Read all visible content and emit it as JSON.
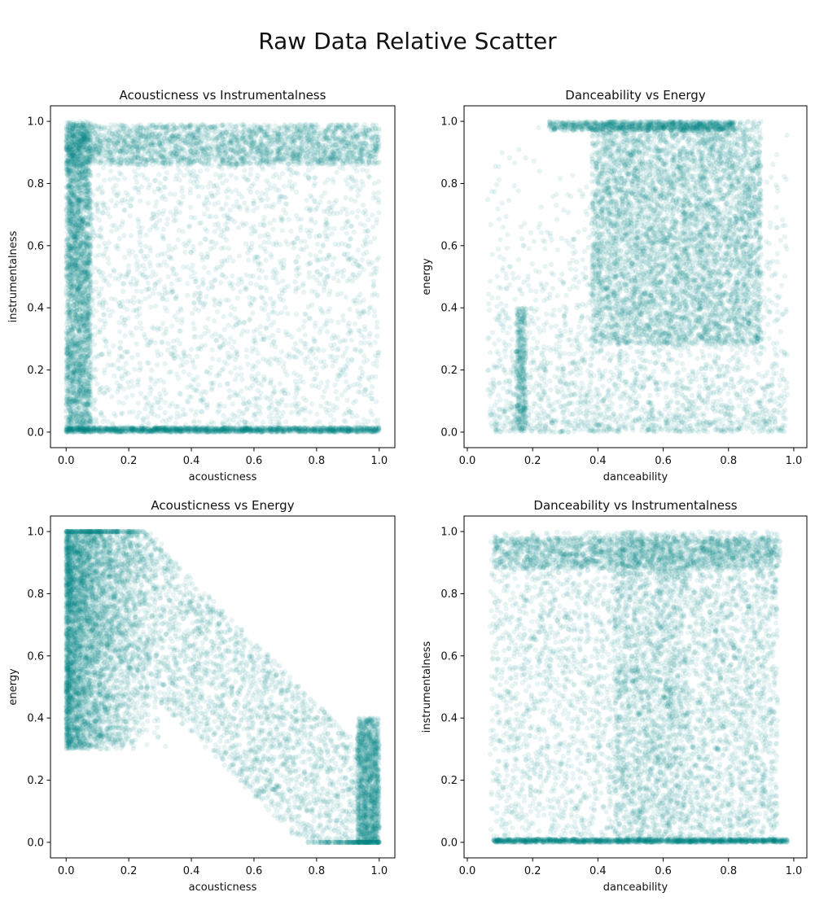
{
  "figure": {
    "title": "Raw Data Relative Scatter"
  },
  "chart_data": [
    {
      "type": "scatter",
      "title": "Acousticness vs Instrumentalness",
      "xlabel": "acousticness",
      "ylabel": "instrumentalness",
      "xlim": [
        -0.05,
        1.05
      ],
      "ylim": [
        -0.05,
        1.05
      ],
      "xticks": [
        "0.0",
        "0.2",
        "0.4",
        "0.6",
        "0.8",
        "1.0"
      ],
      "yticks": [
        "0.0",
        "0.2",
        "0.4",
        "0.6",
        "0.8",
        "1.0"
      ],
      "grid": false,
      "color": "#008080",
      "marker_alpha": 0.03,
      "density_regions": [
        {
          "shape": "band",
          "x": [
            0.0,
            1.0
          ],
          "y": [
            0.85,
            1.0
          ],
          "density": "very high"
        },
        {
          "shape": "band",
          "x": [
            0.0,
            0.07
          ],
          "y": [
            0.0,
            1.0
          ],
          "density": "very high"
        },
        {
          "shape": "band",
          "x": [
            0.0,
            1.0
          ],
          "y": [
            0.0,
            0.02
          ],
          "density": "very high"
        },
        {
          "shape": "region",
          "x": [
            0.1,
            1.0
          ],
          "y": [
            0.05,
            0.8
          ],
          "density": "sparse"
        }
      ]
    },
    {
      "type": "scatter",
      "title": "Danceability vs Energy",
      "xlabel": "danceability",
      "ylabel": "energy",
      "xlim": [
        -0.01,
        1.04
      ],
      "ylim": [
        -0.05,
        1.05
      ],
      "xticks": [
        "0.0",
        "0.2",
        "0.4",
        "0.6",
        "0.8",
        "1.0"
      ],
      "yticks": [
        "0.0",
        "0.2",
        "0.4",
        "0.6",
        "0.8",
        "1.0"
      ],
      "grid": false,
      "color": "#008080",
      "marker_alpha": 0.03,
      "density_regions": [
        {
          "shape": "band",
          "x": [
            0.3,
            0.82
          ],
          "y": [
            0.98,
            1.0
          ],
          "density": "very high"
        },
        {
          "shape": "region",
          "x": [
            0.4,
            0.9
          ],
          "y": [
            0.3,
            1.0
          ],
          "density": "very high"
        },
        {
          "shape": "region",
          "x": [
            0.06,
            0.98
          ],
          "y": [
            0.0,
            0.3
          ],
          "density": "sparse"
        },
        {
          "shape": "band",
          "x": [
            0.15,
            0.18
          ],
          "y": [
            0.0,
            0.4
          ],
          "density": "medium"
        }
      ]
    },
    {
      "type": "scatter",
      "title": "Acousticness vs Energy",
      "xlabel": "acousticness",
      "ylabel": "energy",
      "xlim": [
        -0.05,
        1.05
      ],
      "ylim": [
        -0.05,
        1.05
      ],
      "xticks": [
        "0.0",
        "0.2",
        "0.4",
        "0.6",
        "0.8",
        "1.0"
      ],
      "yticks": [
        "0.0",
        "0.2",
        "0.4",
        "0.6",
        "0.8",
        "1.0"
      ],
      "grid": false,
      "color": "#008080",
      "marker_alpha": 0.03,
      "density_regions": [
        {
          "shape": "region",
          "x": [
            0.0,
            0.3
          ],
          "y": [
            0.35,
            1.0
          ],
          "density": "very high"
        },
        {
          "shape": "diagonal",
          "x": [
            0.0,
            1.0
          ],
          "y": [
            1.0,
            0.0
          ],
          "density": "medium"
        },
        {
          "shape": "region",
          "x": [
            0.9,
            1.0
          ],
          "y": [
            0.0,
            0.4
          ],
          "density": "high"
        }
      ]
    },
    {
      "type": "scatter",
      "title": "Danceability vs Instrumentalness",
      "xlabel": "danceability",
      "ylabel": "instrumentalness",
      "xlim": [
        -0.01,
        1.04
      ],
      "ylim": [
        -0.05,
        1.05
      ],
      "xticks": [
        "0.0",
        "0.2",
        "0.4",
        "0.6",
        "0.8",
        "1.0"
      ],
      "yticks": [
        "0.0",
        "0.2",
        "0.4",
        "0.6",
        "0.8",
        "1.0"
      ],
      "grid": false,
      "color": "#008080",
      "marker_alpha": 0.03,
      "density_regions": [
        {
          "shape": "band",
          "x": [
            0.07,
            0.95
          ],
          "y": [
            0.85,
            1.0
          ],
          "density": "very high"
        },
        {
          "shape": "band",
          "x": [
            0.08,
            0.99
          ],
          "y": [
            0.0,
            0.02
          ],
          "density": "very high"
        },
        {
          "shape": "region",
          "x": [
            0.4,
            0.95
          ],
          "y": [
            0.0,
            1.0
          ],
          "density": "very high"
        },
        {
          "shape": "region",
          "x": [
            0.07,
            0.4
          ],
          "y": [
            0.05,
            0.8
          ],
          "density": "sparse"
        }
      ]
    }
  ]
}
